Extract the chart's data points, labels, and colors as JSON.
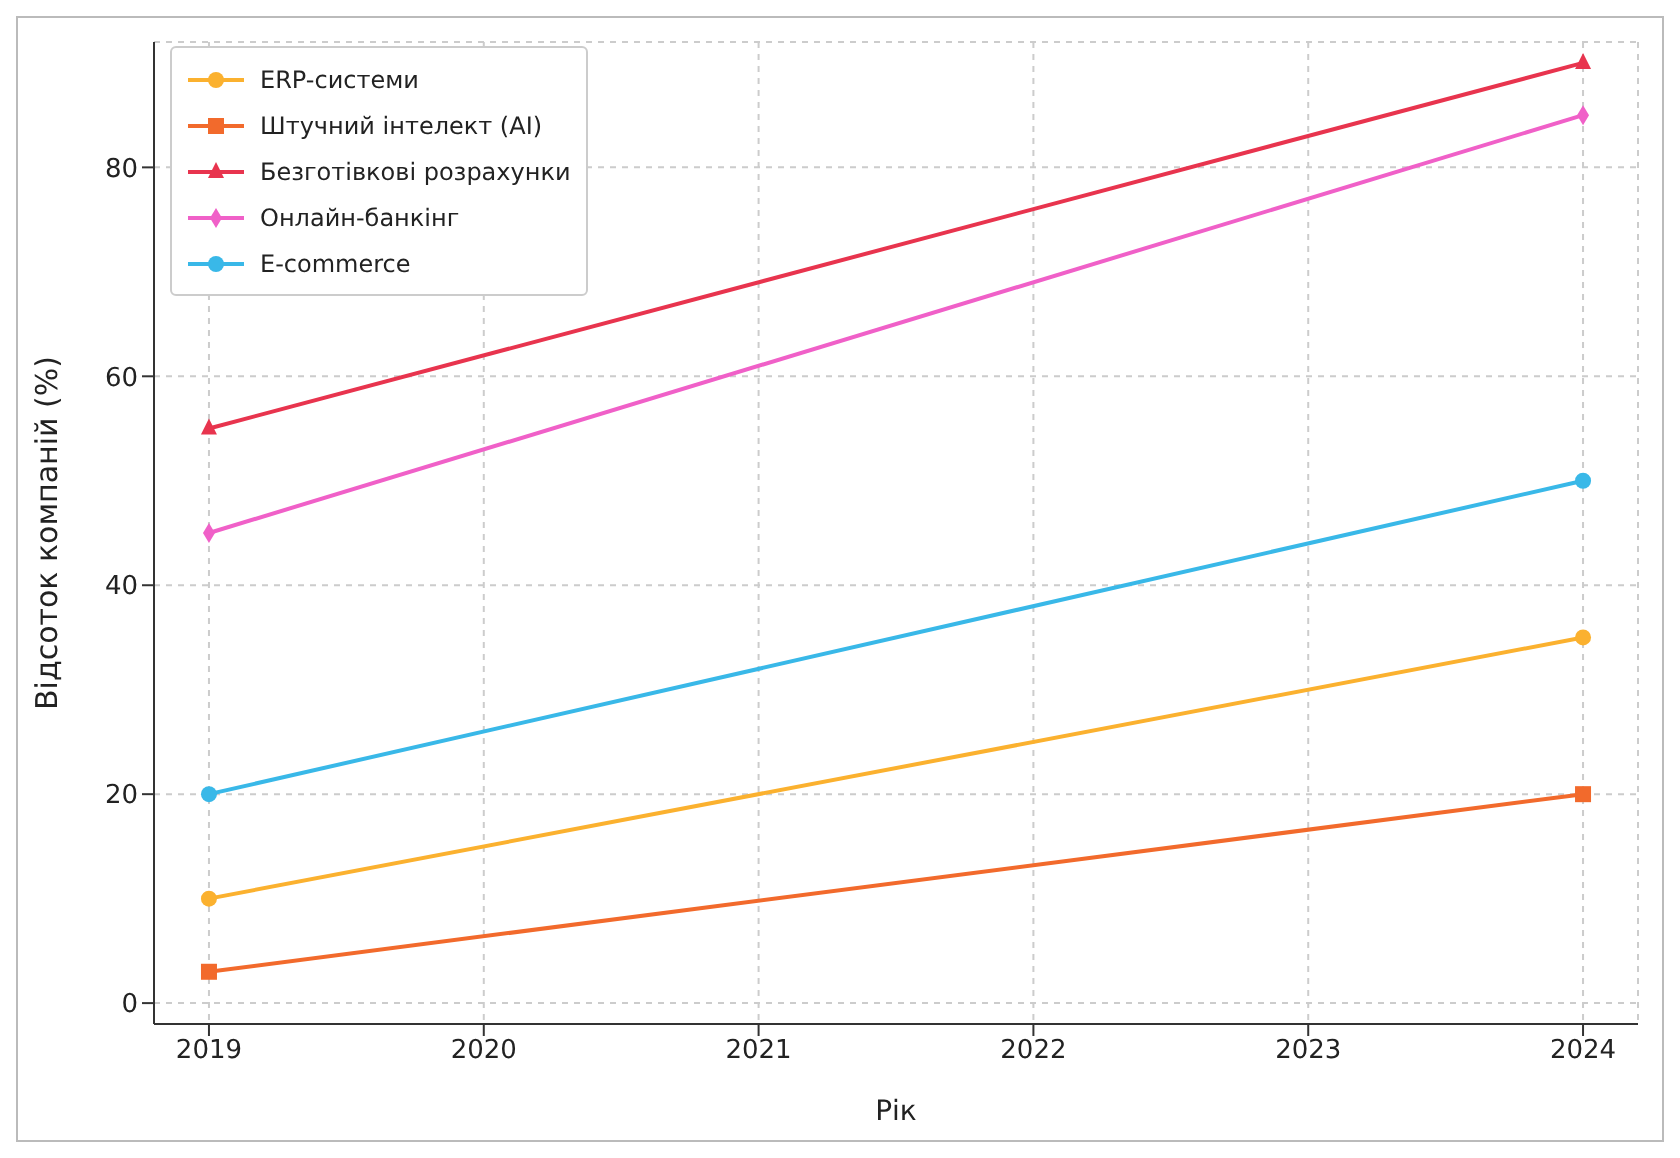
{
  "chart_data": {
    "type": "line",
    "xlabel": "Рік",
    "ylabel": "Відсоток компаній (%)",
    "x": [
      2019,
      2024
    ],
    "xlim": [
      2018.8,
      2024.2
    ],
    "xticks": [
      2019,
      2020,
      2021,
      2022,
      2023,
      2024
    ],
    "ylim": [
      -2,
      92
    ],
    "yticks": [
      0,
      20,
      40,
      60,
      80
    ],
    "grid": true,
    "legend": "top left",
    "line_style": "solid",
    "series": [
      {
        "name": "ERP-системи",
        "color": "#fbb12f",
        "marker": "circle",
        "values": [
          10,
          35
        ]
      },
      {
        "name": "Штучний інтелект (AI)",
        "color": "#f26a2c",
        "marker": "square",
        "values": [
          3,
          20
        ]
      },
      {
        "name": "Безготівкові розрахунки",
        "color": "#e8344e",
        "marker": "triangle",
        "values": [
          55,
          90
        ]
      },
      {
        "name": "Онлайн-банкінг",
        "color": "#f060c8",
        "marker": "diamond",
        "values": [
          45,
          85
        ]
      },
      {
        "name": "E-commerce",
        "color": "#39b8e8",
        "marker": "circle",
        "values": [
          20,
          50
        ]
      }
    ]
  }
}
